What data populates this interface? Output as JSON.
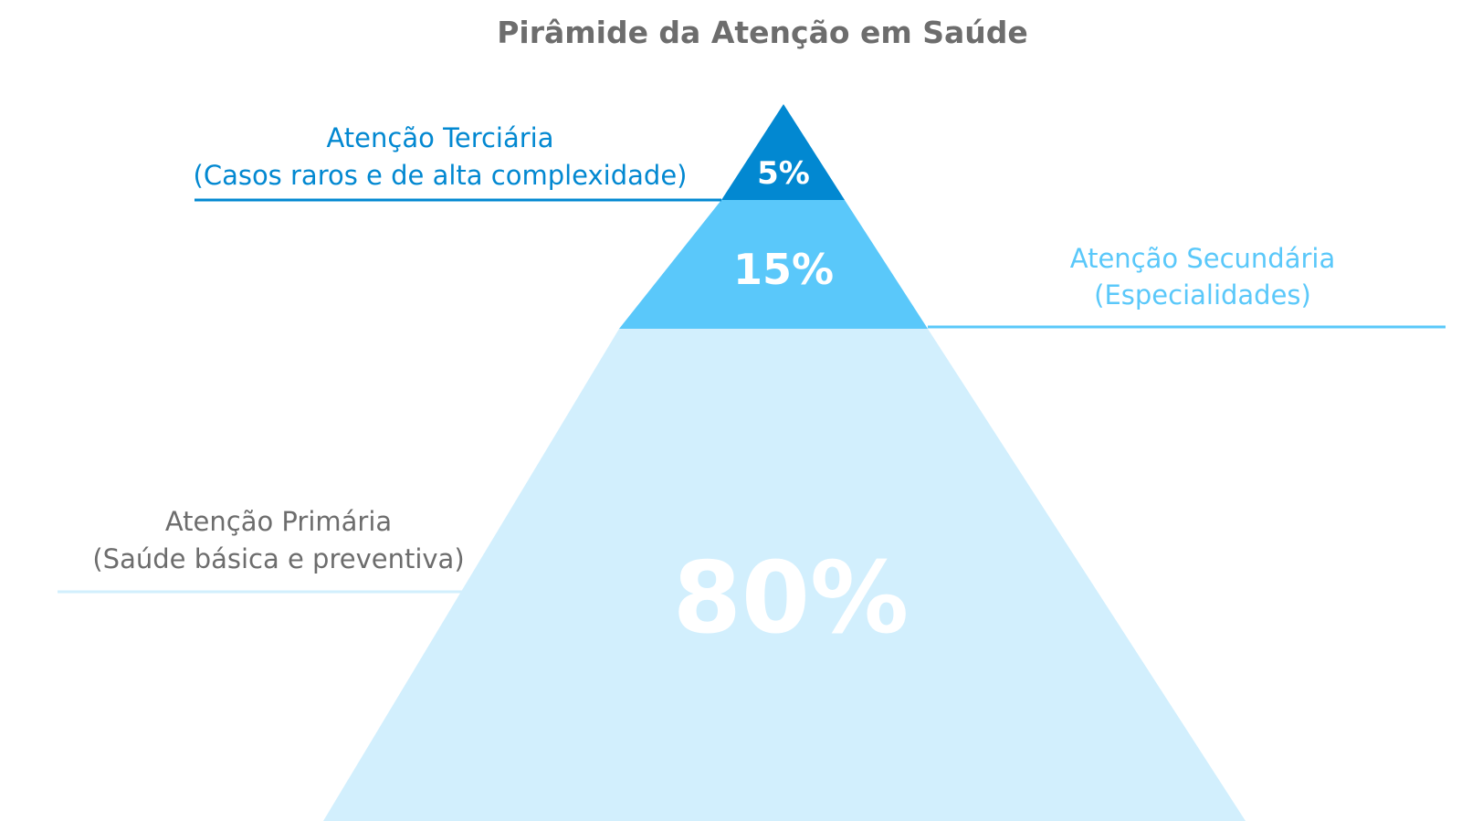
{
  "title": "Pirâmide da Atenção em Saúde",
  "levels": [
    {
      "key": "tertiary",
      "percent": 5,
      "percent_label": "5%",
      "name": "Atenção Terciária",
      "description": "(Casos raros e de alta complexidade)",
      "fill_color": "#0288d1",
      "text_color": "#0288d1",
      "line_color": "#0288d1",
      "label_side": "left"
    },
    {
      "key": "secondary",
      "percent": 15,
      "percent_label": "15%",
      "name": "Atenção Secundária",
      "description": "(Especialidades)",
      "fill_color": "#5ac8fa",
      "text_color": "#5ac8fa",
      "line_color": "#5ac8fa",
      "label_side": "right"
    },
    {
      "key": "primary",
      "percent": 80,
      "percent_label": "80%",
      "name": "Atenção Primária",
      "description": "(Saúde básica e preventiva)",
      "fill_color": "#d2effd",
      "text_color": "#6d6d6d",
      "line_color": "#d2effd",
      "label_side": "left"
    }
  ],
  "colors": {
    "title": "#6d6d6d",
    "percent_text": "#ffffff"
  }
}
